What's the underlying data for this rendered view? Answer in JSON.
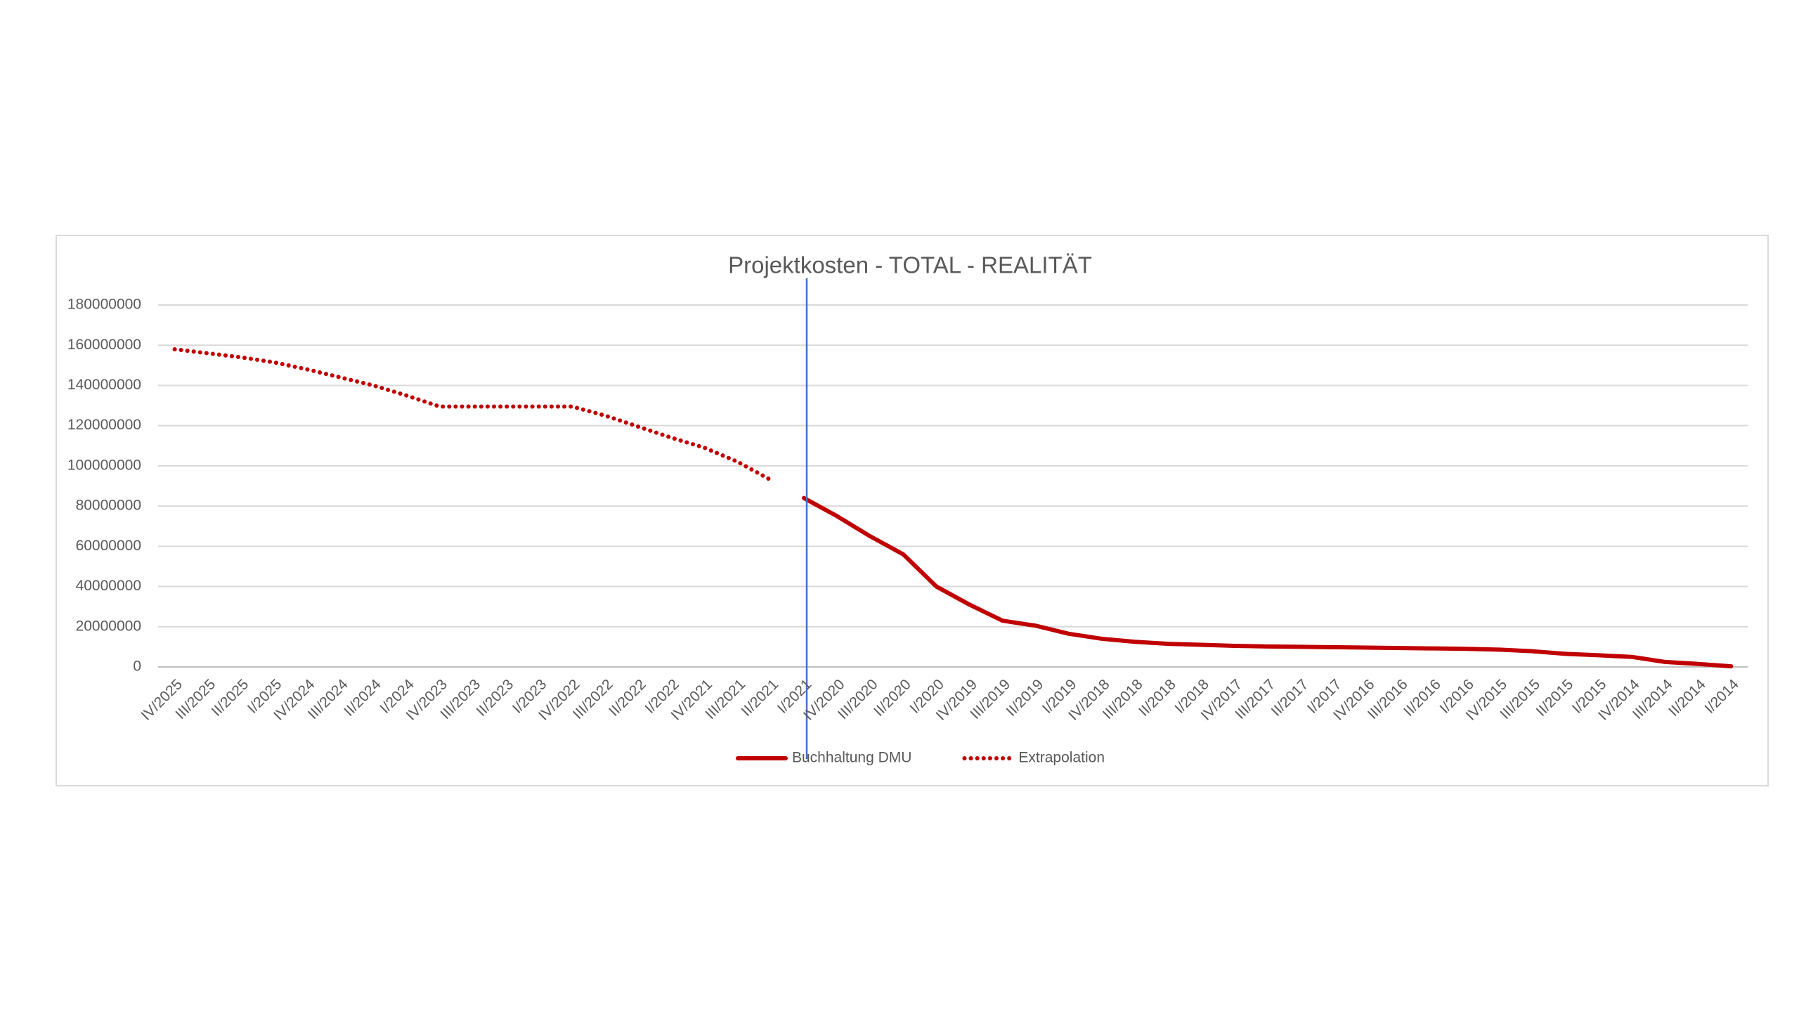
{
  "chart_data": {
    "type": "line",
    "title": "Projektkosten - TOTAL - REALITÄT",
    "categories": [
      "IV/2025",
      "III/2025",
      "II/2025",
      "I/2025",
      "IV/2024",
      "III/2024",
      "II/2024",
      "I/2024",
      "IV/2023",
      "III/2023",
      "II/2023",
      "I/2023",
      "IV/2022",
      "III/2022",
      "II/2022",
      "I/2022",
      "IV/2021",
      "III/2021",
      "II/2021",
      "I/2021",
      "IV/2020",
      "III/2020",
      "II/2020",
      "I/2020",
      "IV/2019",
      "III/2019",
      "II/2019",
      "I/2019",
      "IV/2018",
      "III/2018",
      "II/2018",
      "I/2018",
      "IV/2017",
      "III/2017",
      "II/2017",
      "I/2017",
      "IV/2016",
      "III/2016",
      "II/2016",
      "I/2016",
      "IV/2015",
      "III/2015",
      "II/2015",
      "I/2015",
      "IV/2014",
      "III/2014",
      "II/2014",
      "I/2014"
    ],
    "series": [
      {
        "name": "Buchhaltung DMU",
        "color": "#c00000",
        "style": "solid",
        "values": [
          null,
          null,
          null,
          null,
          null,
          null,
          null,
          null,
          null,
          null,
          null,
          null,
          null,
          null,
          null,
          null,
          null,
          null,
          null,
          84000000,
          75000000,
          65000000,
          56000000,
          40000000,
          31000000,
          23000000,
          20500000,
          16500000,
          14000000,
          12500000,
          11500000,
          11000000,
          10500000,
          10200000,
          10000000,
          9800000,
          9600000,
          9400000,
          9200000,
          9000000,
          8600000,
          7800000,
          6500000,
          5800000,
          5000000,
          2500000,
          1500000,
          300000
        ]
      },
      {
        "name": "Extrapolation",
        "color": "#c00000",
        "style": "dotted",
        "values": [
          158000000,
          156000000,
          154000000,
          151500000,
          148000000,
          144000000,
          140000000,
          135000000,
          129500000,
          129500000,
          129500000,
          129500000,
          129500000,
          125000000,
          119500000,
          114000000,
          109000000,
          102000000,
          93000000,
          null,
          null,
          null,
          null,
          null,
          null,
          null,
          null,
          null,
          null,
          null,
          null,
          null,
          null,
          null,
          null,
          null,
          null,
          null,
          null,
          null,
          null,
          null,
          null,
          null,
          null,
          null,
          null,
          null
        ]
      }
    ],
    "ylim": [
      0,
      180000000
    ],
    "yticks": [
      0,
      20000000,
      40000000,
      60000000,
      80000000,
      100000000,
      120000000,
      140000000,
      160000000,
      180000000
    ],
    "grid": true,
    "legend": "bottom"
  }
}
